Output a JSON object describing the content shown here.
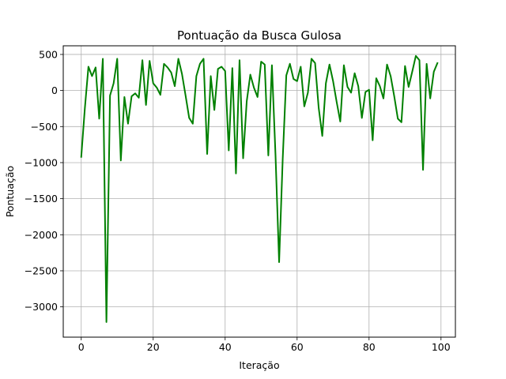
{
  "chart_data": {
    "type": "line",
    "title": "Pontuação da Busca Gulosa",
    "xlabel": "Iteração",
    "ylabel": "Pontuação",
    "xlim": [
      -5,
      104
    ],
    "ylim": [
      -3420,
      620
    ],
    "xticks": [
      0,
      20,
      40,
      60,
      80,
      100
    ],
    "yticks": [
      500,
      0,
      -500,
      -1000,
      -1500,
      -2000,
      -2500,
      -3000
    ],
    "ytick_labels": [
      "500",
      "0",
      "−500",
      "−1000",
      "−1500",
      "−2000",
      "−2500",
      "−3000"
    ],
    "grid": true,
    "color": "#008000",
    "series": [
      {
        "x": [
          0,
          1,
          2,
          3,
          4,
          5,
          6,
          7,
          8,
          9,
          10,
          11,
          12,
          13,
          14,
          15,
          16,
          17,
          18,
          19,
          20,
          21,
          22,
          23,
          24,
          25,
          26,
          27,
          28,
          29,
          30,
          31,
          32,
          33,
          34,
          35,
          36,
          37,
          38,
          39,
          40,
          41,
          42,
          43,
          44,
          45,
          46,
          47,
          48,
          49,
          50,
          51,
          52,
          53,
          54,
          55,
          56,
          57,
          58,
          59,
          60,
          61,
          62,
          63,
          64,
          65,
          66,
          67,
          68,
          69,
          70,
          71,
          72,
          73,
          74,
          75,
          76,
          77,
          78,
          79,
          80,
          81,
          82,
          83,
          84,
          85,
          86,
          87,
          88,
          89,
          90,
          91,
          92,
          93,
          94,
          95,
          96,
          97,
          98,
          99
        ],
        "values": [
          -920,
          -250,
          330,
          200,
          320,
          -390,
          440,
          -3210,
          -70,
          100,
          440,
          -970,
          -90,
          -460,
          -80,
          -40,
          -100,
          420,
          -200,
          410,
          100,
          40,
          -60,
          370,
          320,
          250,
          60,
          440,
          230,
          -70,
          -380,
          -460,
          200,
          370,
          440,
          -880,
          200,
          -270,
          300,
          330,
          270,
          -830,
          310,
          -1150,
          420,
          -940,
          -150,
          220,
          40,
          -90,
          400,
          360,
          -900,
          350,
          -900,
          -2380,
          -950,
          210,
          370,
          160,
          130,
          330,
          -220,
          -30,
          440,
          380,
          -240,
          -630,
          100,
          360,
          130,
          -160,
          -430,
          350,
          50,
          -30,
          240,
          60,
          -380,
          -20,
          10,
          -690,
          170,
          60,
          -110,
          360,
          200,
          -80,
          -390,
          -440,
          340,
          50,
          260,
          480,
          420,
          -1100,
          370,
          -110,
          260,
          380
        ]
      }
    ]
  }
}
